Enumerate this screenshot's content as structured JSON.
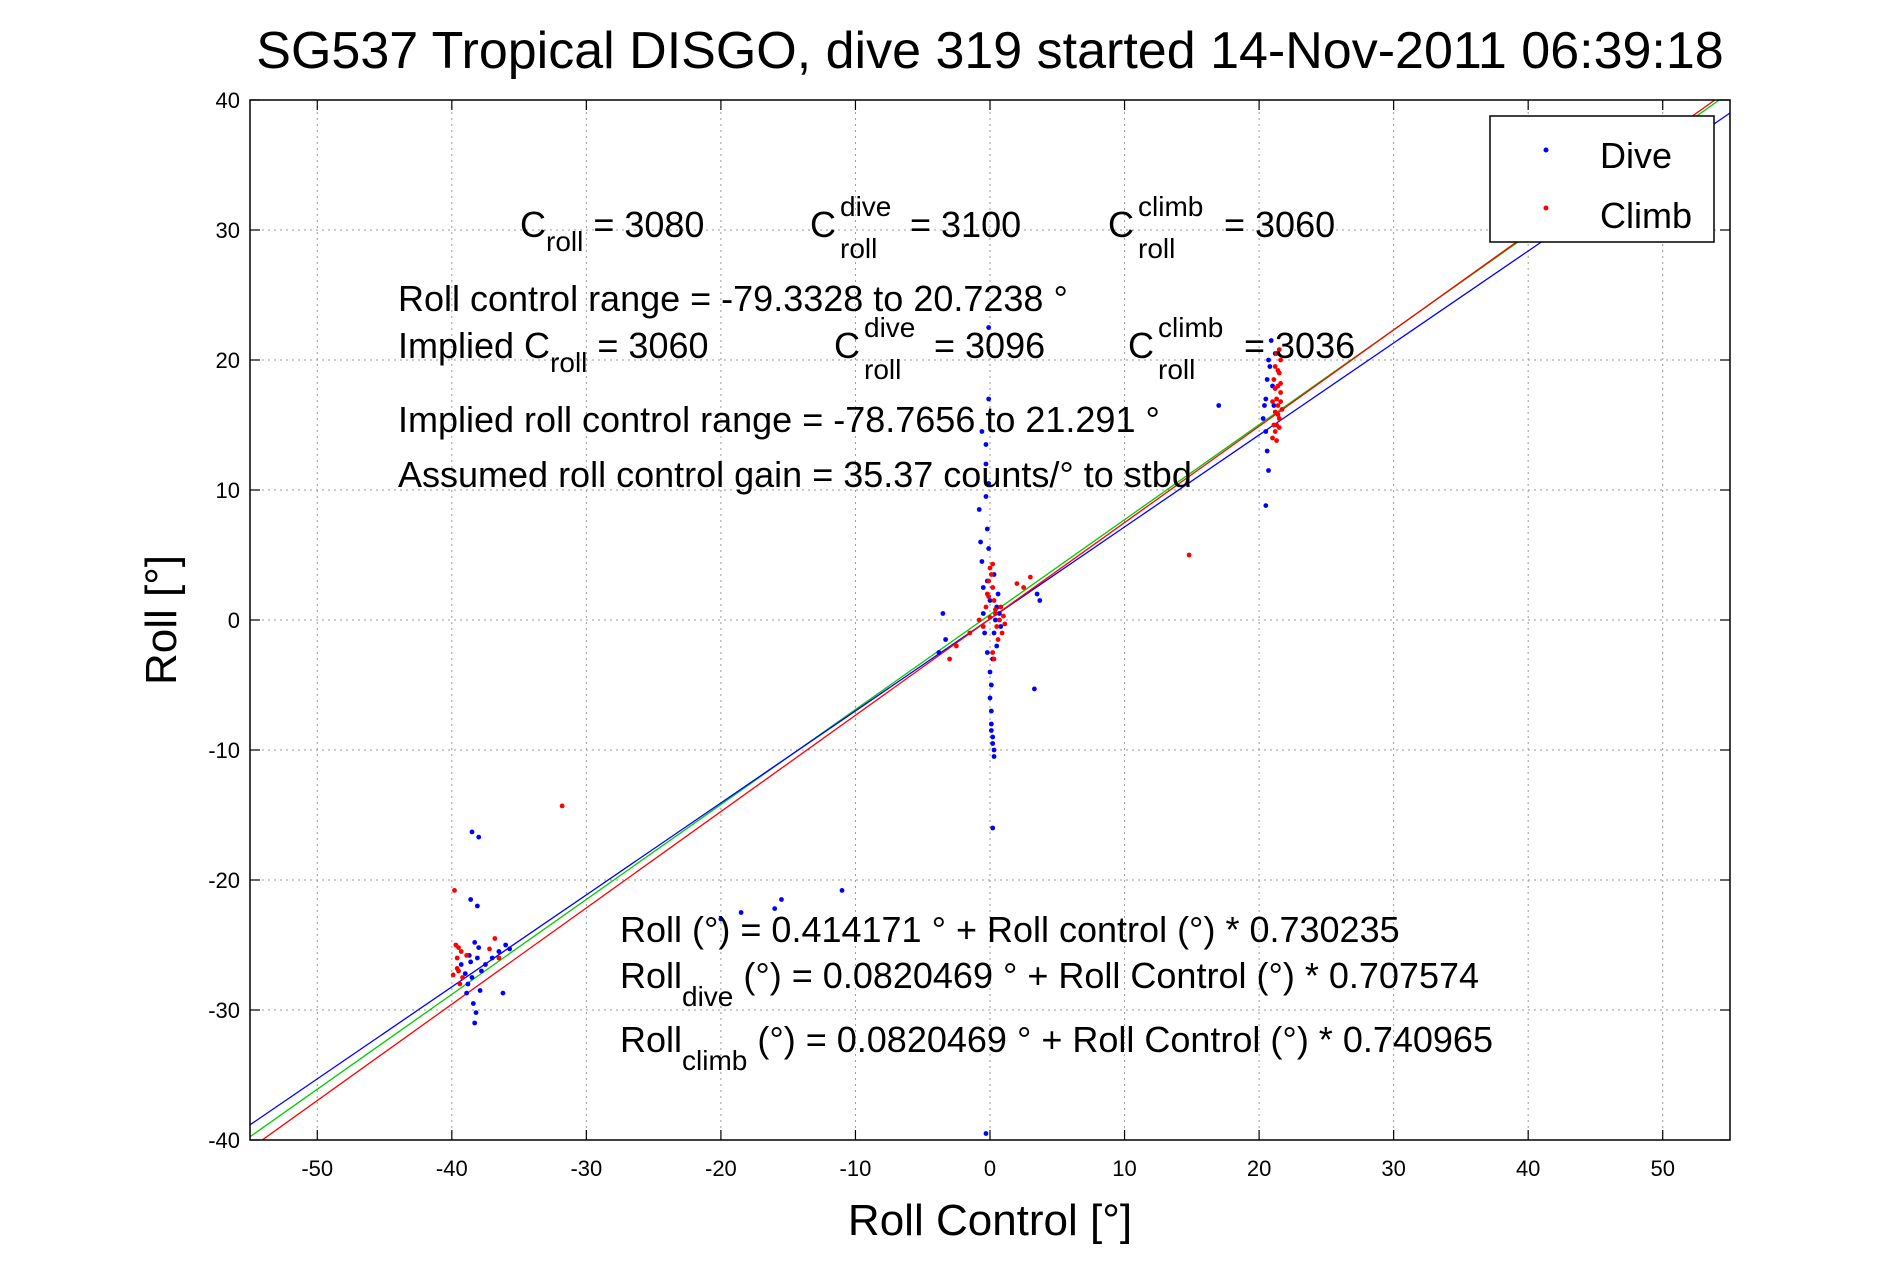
{
  "chart_data": {
    "type": "scatter",
    "title": "SG537 Tropical DISGO, dive 319 started 14-Nov-2011 06:39:18",
    "xlabel": "Roll Control [°]",
    "ylabel": "Roll [°]",
    "xlim": [
      -55,
      55
    ],
    "ylim": [
      -40,
      40
    ],
    "xticks": [
      -50,
      -40,
      -30,
      -20,
      -10,
      0,
      10,
      20,
      30,
      40,
      50
    ],
    "yticks": [
      -40,
      -30,
      -20,
      -10,
      0,
      10,
      20,
      30,
      40
    ],
    "xtick_labels": [
      "-50",
      "-40",
      "-30",
      "-20",
      "-10",
      "0",
      "10",
      "20",
      "30",
      "40",
      "50"
    ],
    "ytick_labels": [
      "-40",
      "-30",
      "-20",
      "-10",
      "0",
      "10",
      "20",
      "30",
      "40"
    ],
    "grid": true,
    "legend": {
      "position": "top-right",
      "entries": [
        {
          "label": "Dive",
          "color": "#0000ff"
        },
        {
          "label": "Climb",
          "color": "#ff0000"
        }
      ]
    },
    "series": [
      {
        "name": "Dive",
        "color": "#0000ff",
        "points": [
          [
            -39.3,
            -26.5
          ],
          [
            -39.0,
            -27.2
          ],
          [
            -38.8,
            -28.0
          ],
          [
            -38.7,
            -25.8
          ],
          [
            -38.5,
            -27.5
          ],
          [
            -38.4,
            -29.5
          ],
          [
            -38.3,
            -31.0
          ],
          [
            -38.2,
            -30.2
          ],
          [
            -38.1,
            -26.0
          ],
          [
            -38.0,
            -25.2
          ],
          [
            -37.9,
            -28.5
          ],
          [
            -37.8,
            -27.0
          ],
          [
            -38.6,
            -21.5
          ],
          [
            -38.5,
            -16.3
          ],
          [
            -38.0,
            -16.7
          ],
          [
            -38.1,
            -22.0
          ],
          [
            -37.5,
            -26.5
          ],
          [
            -37.0,
            -26.0
          ],
          [
            -36.5,
            -25.5
          ],
          [
            -36.0,
            -25.0
          ],
          [
            -35.7,
            -25.3
          ],
          [
            -36.2,
            -28.7
          ],
          [
            -38.3,
            -24.8
          ],
          [
            -38.9,
            -28.7
          ],
          [
            -38.6,
            -26.3
          ],
          [
            -20.0,
            -23.0
          ],
          [
            -18.5,
            -22.5
          ],
          [
            -16.0,
            -22.2
          ],
          [
            -15.5,
            -21.5
          ],
          [
            -11.0,
            -20.8
          ],
          [
            -3.8,
            -2.5
          ],
          [
            -3.5,
            0.5
          ],
          [
            -3.3,
            -1.5
          ],
          [
            -0.8,
            8.5
          ],
          [
            -0.7,
            6.0
          ],
          [
            -0.6,
            4.5
          ],
          [
            -0.5,
            2.5
          ],
          [
            -0.5,
            0.5
          ],
          [
            -0.4,
            -1.0
          ],
          [
            -0.3,
            13.5
          ],
          [
            -0.3,
            12.0
          ],
          [
            -0.3,
            9.5
          ],
          [
            -0.2,
            7.0
          ],
          [
            -0.2,
            3.0
          ],
          [
            -0.2,
            -2.5
          ],
          [
            -0.1,
            22.5
          ],
          [
            -0.1,
            17.0
          ],
          [
            -0.1,
            10.5
          ],
          [
            -0.1,
            5.5
          ],
          [
            0.0,
            1.5
          ],
          [
            0.0,
            -4.0
          ],
          [
            0.0,
            -6.0
          ],
          [
            0.1,
            -7.0
          ],
          [
            0.1,
            -8.0
          ],
          [
            0.1,
            -8.5
          ],
          [
            0.2,
            -9.0
          ],
          [
            0.2,
            -9.5
          ],
          [
            0.3,
            -10.0
          ],
          [
            0.3,
            -10.5
          ],
          [
            0.2,
            -16.0
          ],
          [
            0.1,
            -5.0
          ],
          [
            0.2,
            -3.0
          ],
          [
            0.3,
            -1.0
          ],
          [
            0.4,
            0.0
          ],
          [
            0.5,
            1.0
          ],
          [
            0.6,
            2.0
          ],
          [
            0.7,
            0.5
          ],
          [
            0.8,
            -0.5
          ],
          [
            0.5,
            -2.0
          ],
          [
            0.3,
            3.5
          ],
          [
            -0.3,
            -39.5
          ],
          [
            3.5,
            2.0
          ],
          [
            3.7,
            1.5
          ],
          [
            3.3,
            -5.3
          ],
          [
            -0.6,
            14.5
          ],
          [
            20.3,
            15.5
          ],
          [
            20.5,
            17.0
          ],
          [
            20.6,
            18.5
          ],
          [
            20.7,
            20.0
          ],
          [
            20.8,
            19.5
          ],
          [
            20.9,
            21.5
          ],
          [
            20.5,
            14.5
          ],
          [
            20.6,
            13.0
          ],
          [
            20.5,
            8.8
          ],
          [
            20.7,
            11.5
          ],
          [
            21.0,
            18.0
          ],
          [
            21.1,
            16.5
          ],
          [
            21.2,
            20.5
          ],
          [
            20.4,
            16.5
          ],
          [
            17.0,
            16.5
          ]
        ]
      },
      {
        "name": "Climb",
        "color": "#ff0000",
        "points": [
          [
            -39.8,
            -20.8
          ],
          [
            -39.7,
            -25.0
          ],
          [
            -39.6,
            -26.0
          ],
          [
            -39.5,
            -27.0
          ],
          [
            -39.4,
            -28.0
          ],
          [
            -39.6,
            -26.8
          ],
          [
            -39.3,
            -25.5
          ],
          [
            -39.2,
            -27.5
          ],
          [
            -38.9,
            -25.8
          ],
          [
            -37.2,
            -25.3
          ],
          [
            -36.8,
            -24.5
          ],
          [
            -36.5,
            -26.0
          ],
          [
            -39.9,
            -27.3
          ],
          [
            -39.5,
            -25.2
          ],
          [
            -31.8,
            -14.3
          ],
          [
            -3.0,
            -3.0
          ],
          [
            -2.5,
            -2.0
          ],
          [
            -1.5,
            -1.0
          ],
          [
            -0.8,
            0.0
          ],
          [
            -0.5,
            -0.5
          ],
          [
            -0.3,
            1.0
          ],
          [
            -0.2,
            2.0
          ],
          [
            -0.1,
            3.0
          ],
          [
            0.0,
            4.0
          ],
          [
            0.1,
            3.5
          ],
          [
            0.2,
            2.5
          ],
          [
            0.3,
            1.5
          ],
          [
            0.4,
            0.5
          ],
          [
            0.5,
            -0.5
          ],
          [
            0.6,
            -1.5
          ],
          [
            0.7,
            0.0
          ],
          [
            0.8,
            1.0
          ],
          [
            0.9,
            -1.0
          ],
          [
            1.0,
            0.3
          ],
          [
            1.1,
            -0.3
          ],
          [
            0.2,
            -2.5
          ],
          [
            0.3,
            -3.0
          ],
          [
            0.4,
            0.8
          ],
          [
            -0.1,
            1.8
          ],
          [
            0.0,
            0.2
          ],
          [
            0.2,
            4.3
          ],
          [
            2.0,
            2.8
          ],
          [
            2.5,
            2.5
          ],
          [
            3.0,
            3.3
          ],
          [
            14.8,
            5.0
          ],
          [
            21.0,
            14.0
          ],
          [
            21.1,
            15.0
          ],
          [
            21.2,
            16.0
          ],
          [
            21.3,
            17.0
          ],
          [
            21.4,
            18.0
          ],
          [
            21.5,
            19.0
          ],
          [
            21.6,
            20.0
          ],
          [
            21.3,
            20.5
          ],
          [
            21.2,
            19.5
          ],
          [
            21.4,
            16.5
          ],
          [
            21.5,
            15.5
          ],
          [
            21.6,
            17.5
          ],
          [
            21.1,
            18.5
          ],
          [
            21.3,
            15.0
          ],
          [
            21.5,
            14.8
          ],
          [
            21.7,
            16.2
          ],
          [
            21.2,
            17.8
          ],
          [
            21.0,
            16.8
          ],
          [
            21.4,
            19.2
          ],
          [
            21.6,
            18.2
          ],
          [
            21.3,
            13.8
          ],
          [
            21.5,
            20.8
          ],
          [
            21.2,
            14.5
          ],
          [
            21.4,
            15.8
          ],
          [
            21.6,
            16.8
          ]
        ]
      }
    ],
    "lines": [
      {
        "name": "Roll fit",
        "color": "#00cc00",
        "intercept": 0.414171,
        "slope": 0.730235
      },
      {
        "name": "Roll dive fit",
        "color": "#0000ff",
        "intercept": 0.0820469,
        "slope": 0.707574
      },
      {
        "name": "Roll climb fit",
        "color": "#ff0000",
        "intercept": 0.0820469,
        "slope": 0.740965
      }
    ],
    "annotations": {
      "c_roll": {
        "base": "C",
        "sub": "roll",
        "value": " = 3080"
      },
      "c_roll_dive": {
        "base": "C",
        "sup": "dive",
        "sub": "roll",
        "value": " = 3100"
      },
      "c_roll_climb": {
        "base": "C",
        "sup": "climb",
        "sub": "roll",
        "value": " = 3060"
      },
      "roll_control_range": "Roll control range = -79.3328 to 20.7238 °",
      "implied_c_roll": {
        "prefix": "Implied C",
        "sub": "roll",
        "value": " = 3060"
      },
      "implied_c_roll_dive": {
        "base": "C",
        "sup": "dive",
        "sub": "roll",
        "value": " = 3096"
      },
      "implied_c_roll_climb": {
        "base": "C",
        "sup": "climb",
        "sub": "roll",
        "value": " = 3036"
      },
      "implied_range": "Implied roll control range = -78.7656 to 21.291 °",
      "assumed_gain": "Assumed roll control gain = 35.37 counts/° to stbd",
      "fit_roll": "Roll (°) = 0.414171 ° + Roll control (°) * 0.730235",
      "fit_dive": {
        "base": "Roll",
        "sub": "dive",
        "rest": " (°) = 0.0820469 ° + Roll Control (°) * 0.707574"
      },
      "fit_climb": {
        "base": "Roll",
        "sub": "climb",
        "rest": " (°) = 0.0820469 ° + Roll Control (°) * 0.740965"
      }
    }
  }
}
